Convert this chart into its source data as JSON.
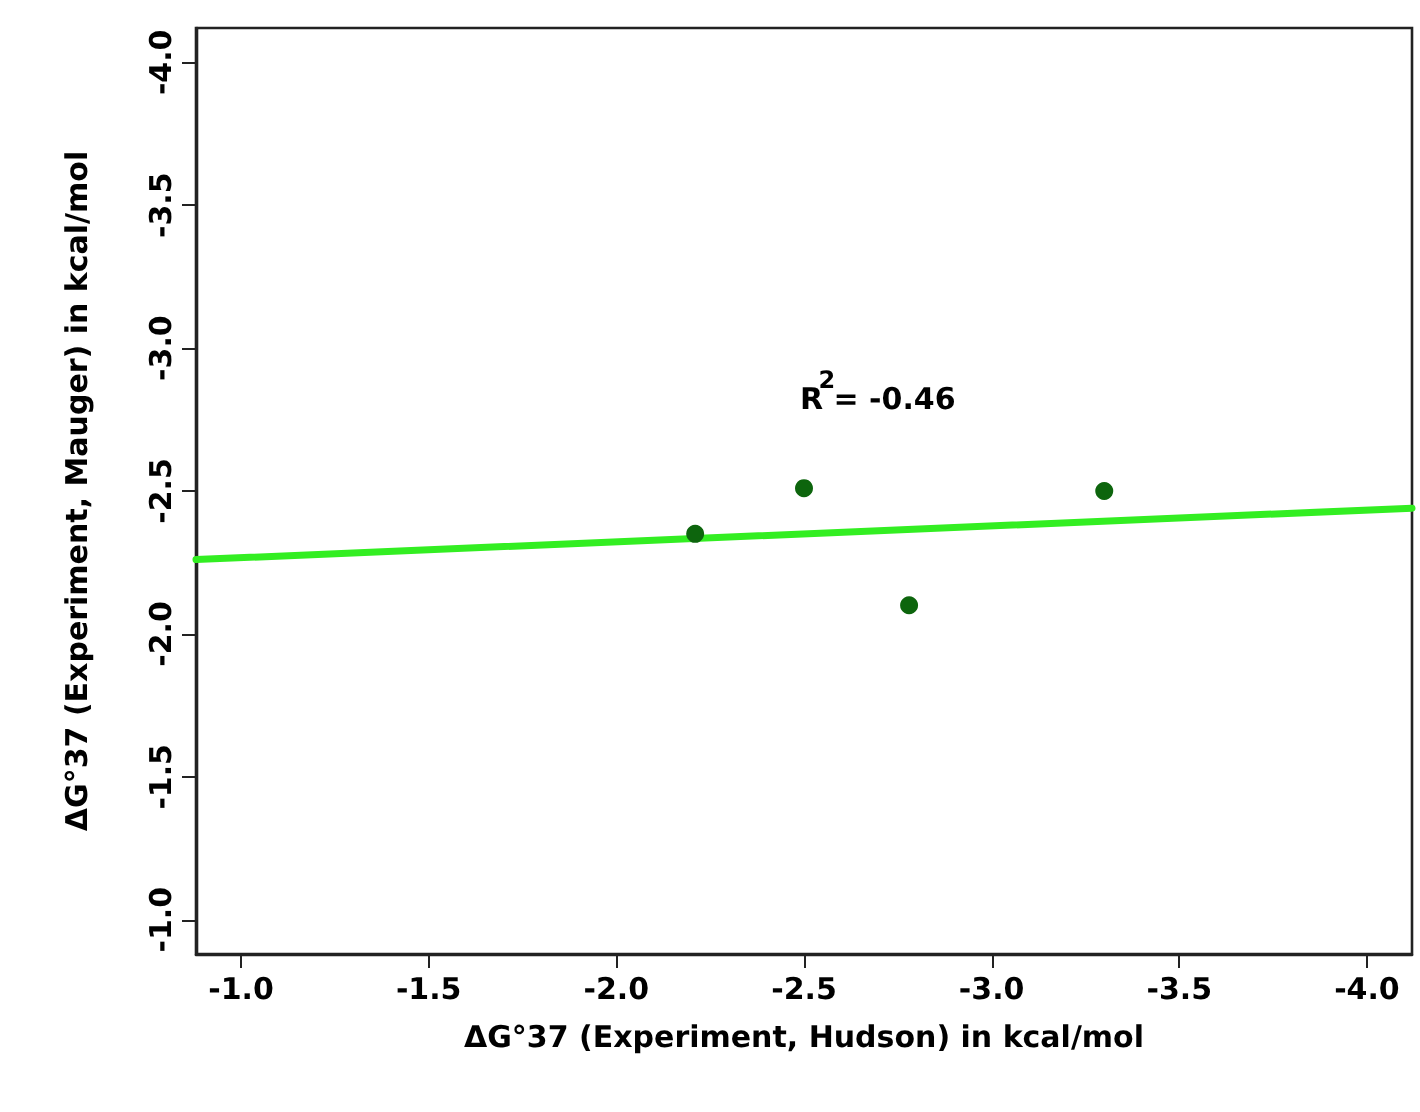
{
  "chart_data": {
    "type": "scatter",
    "xlabel": "ΔG°37 (Experiment, Hudson) in kcal/mol",
    "ylabel": "ΔG°37 (Experiment, Mauger) in kcal/mol",
    "annotations": [
      "R$^{2}$= -0.46"
    ],
    "xlim": [
      -0.88,
      -4.12
    ],
    "ylim": [
      -0.88,
      -4.12
    ],
    "xticks": [
      {
        "value": -1.0,
        "label": "-1.0"
      },
      -1.5,
      {
        "value": -2.0,
        "label": "-2.0"
      },
      -2.5,
      {
        "value": -3.0,
        "label": "-3.0"
      },
      -3.5,
      {
        "value": -4.0,
        "label": "-4.0"
      }
    ],
    "yticks": [
      {
        "value": -1.0,
        "label": "-1.0"
      },
      -1.5,
      {
        "value": -2.0,
        "label": "-2.0"
      },
      -2.5,
      {
        "value": -3.0,
        "label": "-3.0"
      },
      -3.5,
      {
        "value": -4.0,
        "label": "-4.0"
      }
    ],
    "grid": false,
    "marker": "circle",
    "series": [
      {
        "color": "#0d650d",
        "x": [
          -2.21,
          -2.5,
          -2.78,
          -3.3
        ],
        "values": [
          -2.35,
          -2.51,
          -2.1,
          -2.5
        ]
      },
      {
        "type": "line",
        "color": "#33ee22",
        "marker": "none",
        "x": [
          -0.88,
          -4.12
        ],
        "values": [
          -2.26,
          -2.44
        ]
      }
    ]
  }
}
